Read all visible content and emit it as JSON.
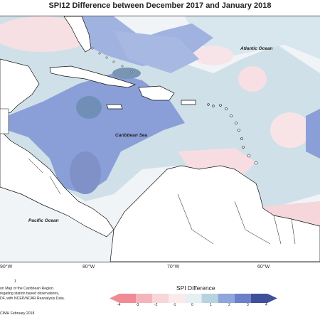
{
  "title": "SPI12 Difference between December 2017 and January 2018",
  "map_labels": {
    "atlantic": "Atlantic Ocean",
    "caribbean": "Caribbean Sea",
    "pacific": "Pacific Ocean"
  },
  "longitude_labels": [
    "90°W",
    "80°W",
    "70°W",
    "60°W"
  ],
  "notes": [
    "on Map of the Caribbean Region.",
    "regating station based observations,",
    "DF, with NCEP/NCAR Reanalysis Data.",
    "CIMH February 2018"
  ],
  "legend": {
    "title": "SPI Difference",
    "ticks": [
      "-4",
      "-3",
      "-2",
      "-1",
      "0",
      "1",
      "2",
      "3",
      "4"
    ],
    "colors": [
      "#f08a94",
      "#f4b4bb",
      "#f7d6da",
      "#fbeaec",
      "#e6eff3",
      "#b8d3df",
      "#8ea6dc",
      "#6b80c8",
      "#3f4f9a"
    ]
  },
  "note_marker": "1"
}
